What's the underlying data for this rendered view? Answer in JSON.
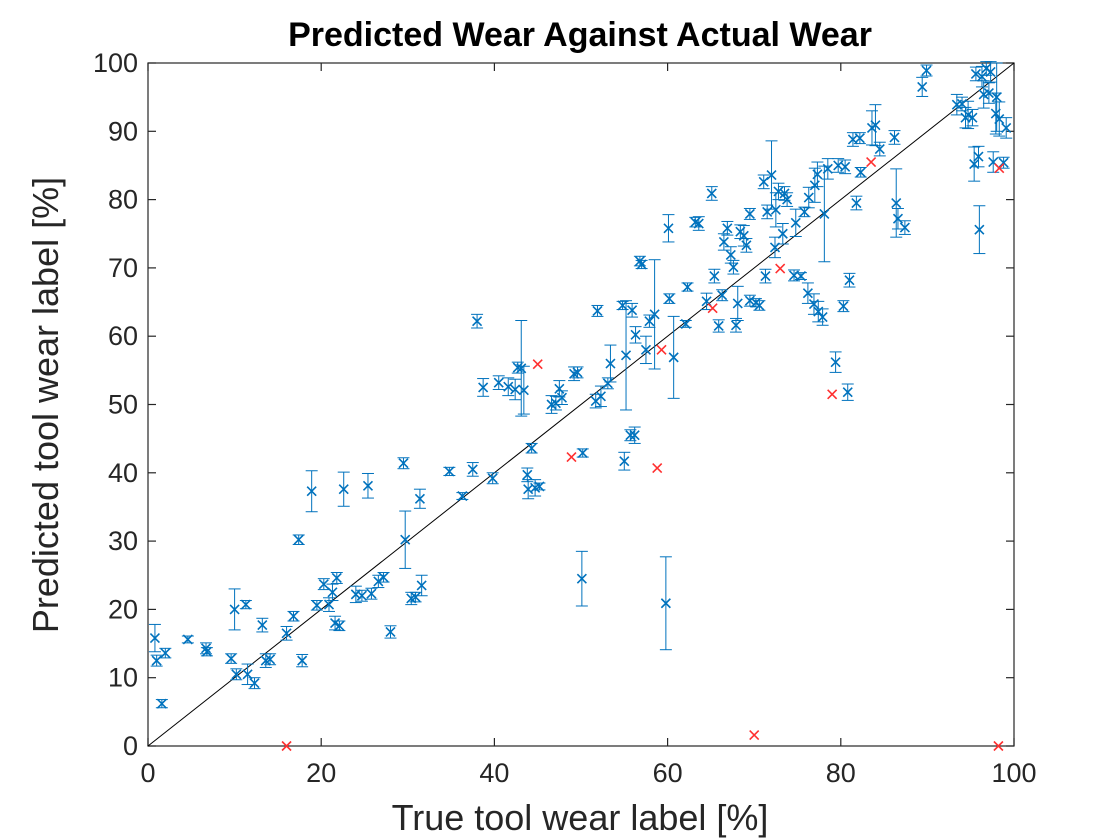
{
  "chart_data": {
    "type": "scatter",
    "title": "Predicted Wear Against Actual Wear",
    "xlabel": "True tool wear label [%]",
    "ylabel": "Predicted tool wear label [%]",
    "xlim": [
      0,
      100
    ],
    "ylim": [
      0,
      100
    ],
    "xticks": [
      "0",
      "20",
      "40",
      "60",
      "80",
      "100"
    ],
    "yticks": [
      "0",
      "10",
      "20",
      "30",
      "40",
      "50",
      "60",
      "70",
      "80",
      "90",
      "100"
    ],
    "grid": false,
    "legend": "none",
    "reference_line": {
      "x": [
        0,
        100
      ],
      "y": [
        0,
        100
      ],
      "color": "#000000"
    },
    "series": [
      {
        "marker": "x",
        "color": "#0072BD",
        "has_error_bars": true,
        "points": [
          [
            0.8,
            15.8,
            2.0
          ],
          [
            1.0,
            12.5,
            0.8
          ],
          [
            2.0,
            13.6,
            0.7
          ],
          [
            1.6,
            6.2,
            0.6
          ],
          [
            4.6,
            15.6,
            0.5
          ],
          [
            6.7,
            14.3,
            0.8
          ],
          [
            6.8,
            13.8,
            0.6
          ],
          [
            9.6,
            12.8,
            0.7
          ],
          [
            10.0,
            20.0,
            3.0
          ],
          [
            10.2,
            10.5,
            0.8
          ],
          [
            11.3,
            20.7,
            0.6
          ],
          [
            11.5,
            10.5,
            1.5
          ],
          [
            12.3,
            9.2,
            0.8
          ],
          [
            13.2,
            17.7,
            1.0
          ],
          [
            13.6,
            12.5,
            1.0
          ],
          [
            14.1,
            12.7,
            0.8
          ],
          [
            16.0,
            16.5,
            1.0
          ],
          [
            16.8,
            19.0,
            0.7
          ],
          [
            17.4,
            30.2,
            0.7
          ],
          [
            17.8,
            12.5,
            0.9
          ],
          [
            18.9,
            37.3,
            3.0
          ],
          [
            19.5,
            20.6,
            0.7
          ],
          [
            20.3,
            23.7,
            0.8
          ],
          [
            20.9,
            20.7,
            1.0
          ],
          [
            21.3,
            22.5,
            1.2
          ],
          [
            21.6,
            18.0,
            1.0
          ],
          [
            21.8,
            24.6,
            0.8
          ],
          [
            22.1,
            17.6,
            0.7
          ],
          [
            22.6,
            37.6,
            2.5
          ],
          [
            24.0,
            22.2,
            1.2
          ],
          [
            24.7,
            22.0,
            0.8
          ],
          [
            25.4,
            38.1,
            1.8
          ],
          [
            25.8,
            22.3,
            0.8
          ],
          [
            26.6,
            24.1,
            0.9
          ],
          [
            27.2,
            24.7,
            0.7
          ],
          [
            28.0,
            16.7,
            0.9
          ],
          [
            29.5,
            41.4,
            0.8
          ],
          [
            29.7,
            30.2,
            4.2
          ],
          [
            30.4,
            21.6,
            0.9
          ],
          [
            30.9,
            21.8,
            0.7
          ],
          [
            31.4,
            36.2,
            1.4
          ],
          [
            31.6,
            23.5,
            1.5
          ],
          [
            34.8,
            40.2,
            0.6
          ],
          [
            36.3,
            36.6,
            0.5
          ],
          [
            37.5,
            40.5,
            1.0
          ],
          [
            38.0,
            62.2,
            1.0
          ],
          [
            38.7,
            52.5,
            1.3
          ],
          [
            39.8,
            39.2,
            0.8
          ],
          [
            40.5,
            53.2,
            1.0
          ],
          [
            41.6,
            52.6,
            1.3
          ],
          [
            42.4,
            52.2,
            1.5
          ],
          [
            42.7,
            55.4,
            0.8
          ],
          [
            43.1,
            55.3,
            7.0
          ],
          [
            43.4,
            52.1,
            3.5
          ],
          [
            43.8,
            39.7,
            1.0
          ],
          [
            43.9,
            37.6,
            1.4
          ],
          [
            44.3,
            43.6,
            0.7
          ],
          [
            44.7,
            37.8,
            1.2
          ],
          [
            45.2,
            38.0,
            0.5
          ],
          [
            46.6,
            50.0,
            1.3
          ],
          [
            47.1,
            50.2,
            1.0
          ],
          [
            47.5,
            52.3,
            1.2
          ],
          [
            47.8,
            51.0,
            1.0
          ],
          [
            49.2,
            54.5,
            1.0
          ],
          [
            49.6,
            54.7,
            0.8
          ],
          [
            50.2,
            42.9,
            0.6
          ],
          [
            50.1,
            24.5,
            4.0
          ],
          [
            51.7,
            50.5,
            1.0
          ],
          [
            51.9,
            63.7,
            0.8
          ],
          [
            52.3,
            51.2,
            1.5
          ],
          [
            53.1,
            53.1,
            0.8
          ],
          [
            53.4,
            56.0,
            2.7
          ],
          [
            54.8,
            64.5,
            0.6
          ],
          [
            55.0,
            41.7,
            1.3
          ],
          [
            55.2,
            57.2,
            8.0
          ],
          [
            55.9,
            63.8,
            1.0
          ],
          [
            55.7,
            45.5,
            0.8
          ],
          [
            56.2,
            45.5,
            1.2
          ],
          [
            56.3,
            60.2,
            1.2
          ],
          [
            56.8,
            71.0,
            0.7
          ],
          [
            57.0,
            70.5,
            0.6
          ],
          [
            57.5,
            58.0,
            2.0
          ],
          [
            57.9,
            62.2,
            0.9
          ],
          [
            58.5,
            63.2,
            8.0
          ],
          [
            60.1,
            75.8,
            2.0
          ],
          [
            60.2,
            65.5,
            0.7
          ],
          [
            60.7,
            56.9,
            6.0
          ],
          [
            59.8,
            20.9,
            6.8
          ],
          [
            62.1,
            61.8,
            0.5
          ],
          [
            62.3,
            67.2,
            0.6
          ],
          [
            63.2,
            76.7,
            0.7
          ],
          [
            63.6,
            76.5,
            1.0
          ],
          [
            64.5,
            65.1,
            1.2
          ],
          [
            65.1,
            80.9,
            1.0
          ],
          [
            65.4,
            68.8,
            1.0
          ],
          [
            65.9,
            61.5,
            0.9
          ],
          [
            66.3,
            66.0,
            0.8
          ],
          [
            66.5,
            73.8,
            1.2
          ],
          [
            66.9,
            75.8,
            1.0
          ],
          [
            67.3,
            71.9,
            1.2
          ],
          [
            67.6,
            70.1,
            1.0
          ],
          [
            67.9,
            61.6,
            1.0
          ],
          [
            68.1,
            64.8,
            2.5
          ],
          [
            68.4,
            75.3,
            1.0
          ],
          [
            68.8,
            74.7,
            1.5
          ],
          [
            69.1,
            73.3,
            1.0
          ],
          [
            69.5,
            65.2,
            0.8
          ],
          [
            69.5,
            77.9,
            0.8
          ],
          [
            70.2,
            64.9,
            0.6
          ],
          [
            70.6,
            64.5,
            0.7
          ],
          [
            71.3,
            68.8,
            1.0
          ],
          [
            71.1,
            82.6,
            1.0
          ],
          [
            71.5,
            78.2,
            1.0
          ],
          [
            72.0,
            83.6,
            5.0
          ],
          [
            72.4,
            73.0,
            1.5
          ],
          [
            72.5,
            78.5,
            2.5
          ],
          [
            72.8,
            81.2,
            1.2
          ],
          [
            73.3,
            75.0,
            1.5
          ],
          [
            73.5,
            80.9,
            1.0
          ],
          [
            73.8,
            80.0,
            1.0
          ],
          [
            74.6,
            68.9,
            0.8
          ],
          [
            74.8,
            76.6,
            2.0
          ],
          [
            75.4,
            68.8,
            0.5
          ],
          [
            75.8,
            78.2,
            0.7
          ],
          [
            76.3,
            80.3,
            1.5
          ],
          [
            76.2,
            66.3,
            1.5
          ],
          [
            76.9,
            64.7,
            1.5
          ],
          [
            77.0,
            82.1,
            2.5
          ],
          [
            77.3,
            83.7,
            1.8
          ],
          [
            77.4,
            63.6,
            1.5
          ],
          [
            77.9,
            62.8,
            1.2
          ],
          [
            78.1,
            77.9,
            7.0
          ],
          [
            78.5,
            84.5,
            1.5
          ],
          [
            79.4,
            56.2,
            1.5
          ],
          [
            79.7,
            85.0,
            1.0
          ],
          [
            80.3,
            64.4,
            0.8
          ],
          [
            80.5,
            84.8,
            1.0
          ],
          [
            80.8,
            51.8,
            1.2
          ],
          [
            81.0,
            68.2,
            1.0
          ],
          [
            81.4,
            88.8,
            1.0
          ],
          [
            81.8,
            79.5,
            1.0
          ],
          [
            82.2,
            89.0,
            0.8
          ],
          [
            82.3,
            84.0,
            0.7
          ],
          [
            83.6,
            90.5,
            2.5
          ],
          [
            84.0,
            90.9,
            3.0
          ],
          [
            84.5,
            87.4,
            1.0
          ],
          [
            86.2,
            89.1,
            1.0
          ],
          [
            86.4,
            79.5,
            5.0
          ],
          [
            86.6,
            77.2,
            1.5
          ],
          [
            87.4,
            75.9,
            1.0
          ],
          [
            89.4,
            96.5,
            1.4
          ],
          [
            89.9,
            98.9,
            0.8
          ],
          [
            93.4,
            93.9,
            1.5
          ],
          [
            94.0,
            94.0,
            1.0
          ],
          [
            94.4,
            92.0,
            1.5
          ],
          [
            94.7,
            92.4,
            2.0
          ],
          [
            95.2,
            92.0,
            1.2
          ],
          [
            95.4,
            85.2,
            2.5
          ],
          [
            95.6,
            98.4,
            1.0
          ],
          [
            95.9,
            86.3,
            1.5
          ],
          [
            96.0,
            75.6,
            3.5
          ],
          [
            96.3,
            98.0,
            1.5
          ],
          [
            96.5,
            95.4,
            2.0
          ],
          [
            96.8,
            99.2,
            1.0
          ],
          [
            97.1,
            95.6,
            1.5
          ],
          [
            97.3,
            98.7,
            1.5
          ],
          [
            97.6,
            85.5,
            1.5
          ],
          [
            97.9,
            92.6,
            3.0
          ],
          [
            98.0,
            95.0,
            5.0
          ],
          [
            98.3,
            91.8,
            2.5
          ],
          [
            98.8,
            85.4,
            0.8
          ],
          [
            99.1,
            90.5,
            1.5
          ]
        ]
      },
      {
        "marker": "x",
        "color": "#FF3030",
        "has_error_bars": false,
        "points": [
          [
            16.0,
            0.0
          ],
          [
            45.0,
            55.9
          ],
          [
            48.9,
            42.3
          ],
          [
            58.8,
            40.7
          ],
          [
            59.3,
            58.0
          ],
          [
            65.2,
            64.1
          ],
          [
            70.0,
            1.6
          ],
          [
            73.0,
            69.9
          ],
          [
            79.0,
            51.5
          ],
          [
            83.5,
            85.5
          ],
          [
            98.3,
            84.6
          ],
          [
            98.2,
            0.0
          ]
        ]
      }
    ]
  }
}
